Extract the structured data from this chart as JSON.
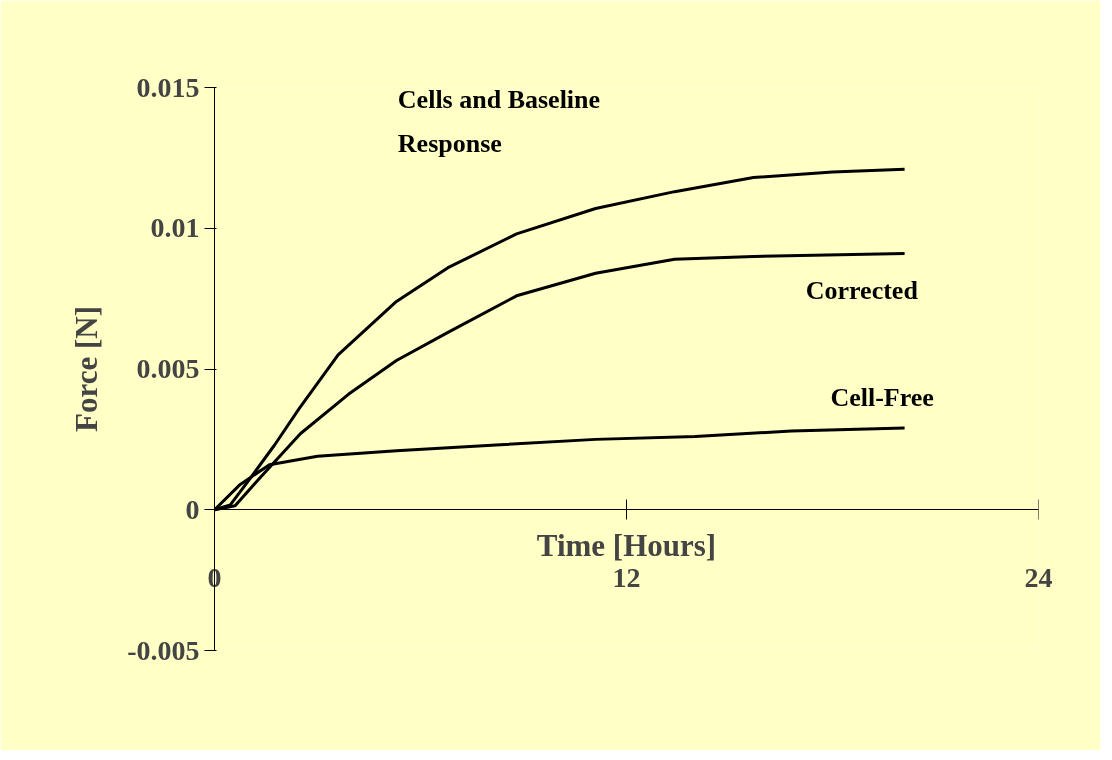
{
  "chart_data": {
    "type": "line",
    "xlabel": "Time [Hours]",
    "ylabel": "Force [N]",
    "xlim": [
      0,
      24
    ],
    "ylim": [
      -0.005,
      0.015
    ],
    "xticks": [
      0,
      12,
      24
    ],
    "yticks": [
      -0.005,
      0,
      0.005,
      0.01,
      0.015
    ],
    "grid": false,
    "legend": false,
    "line_style": "solid",
    "marker": "none",
    "series": [
      {
        "name": "Cells and Baseline Response",
        "color": "#000000",
        "x": [
          0,
          0.46,
          1.03,
          1.75,
          2.47,
          3.6,
          5.3,
          6.8,
          8.8,
          11.1,
          13.4,
          15.7,
          18,
          20.1
        ],
        "values": [
          0,
          0.00017,
          0.0011,
          0.0023,
          0.0036,
          0.0055,
          0.0074,
          0.0086,
          0.0098,
          0.0107,
          0.0113,
          0.0118,
          0.012,
          0.0121
        ]
      },
      {
        "name": "Corrected",
        "color": "#000000",
        "x": [
          0,
          0.6,
          1.3,
          2.5,
          3.9,
          5.3,
          6.8,
          8.8,
          11.1,
          13.4,
          15.7,
          20.1
        ],
        "values": [
          0,
          0.00014,
          0.0011,
          0.0027,
          0.0041,
          0.0053,
          0.0063,
          0.0076,
          0.0084,
          0.0089,
          0.009,
          0.0091
        ]
      },
      {
        "name": "Cell-Free",
        "color": "#000000",
        "x": [
          0,
          0.75,
          1.6,
          3.0,
          5.3,
          8.2,
          11.1,
          14,
          16.8,
          20.1
        ],
        "values": [
          0,
          0.0009,
          0.0016,
          0.0019,
          0.0021,
          0.0023,
          0.0025,
          0.0026,
          0.0028,
          0.0029
        ]
      }
    ]
  }
}
